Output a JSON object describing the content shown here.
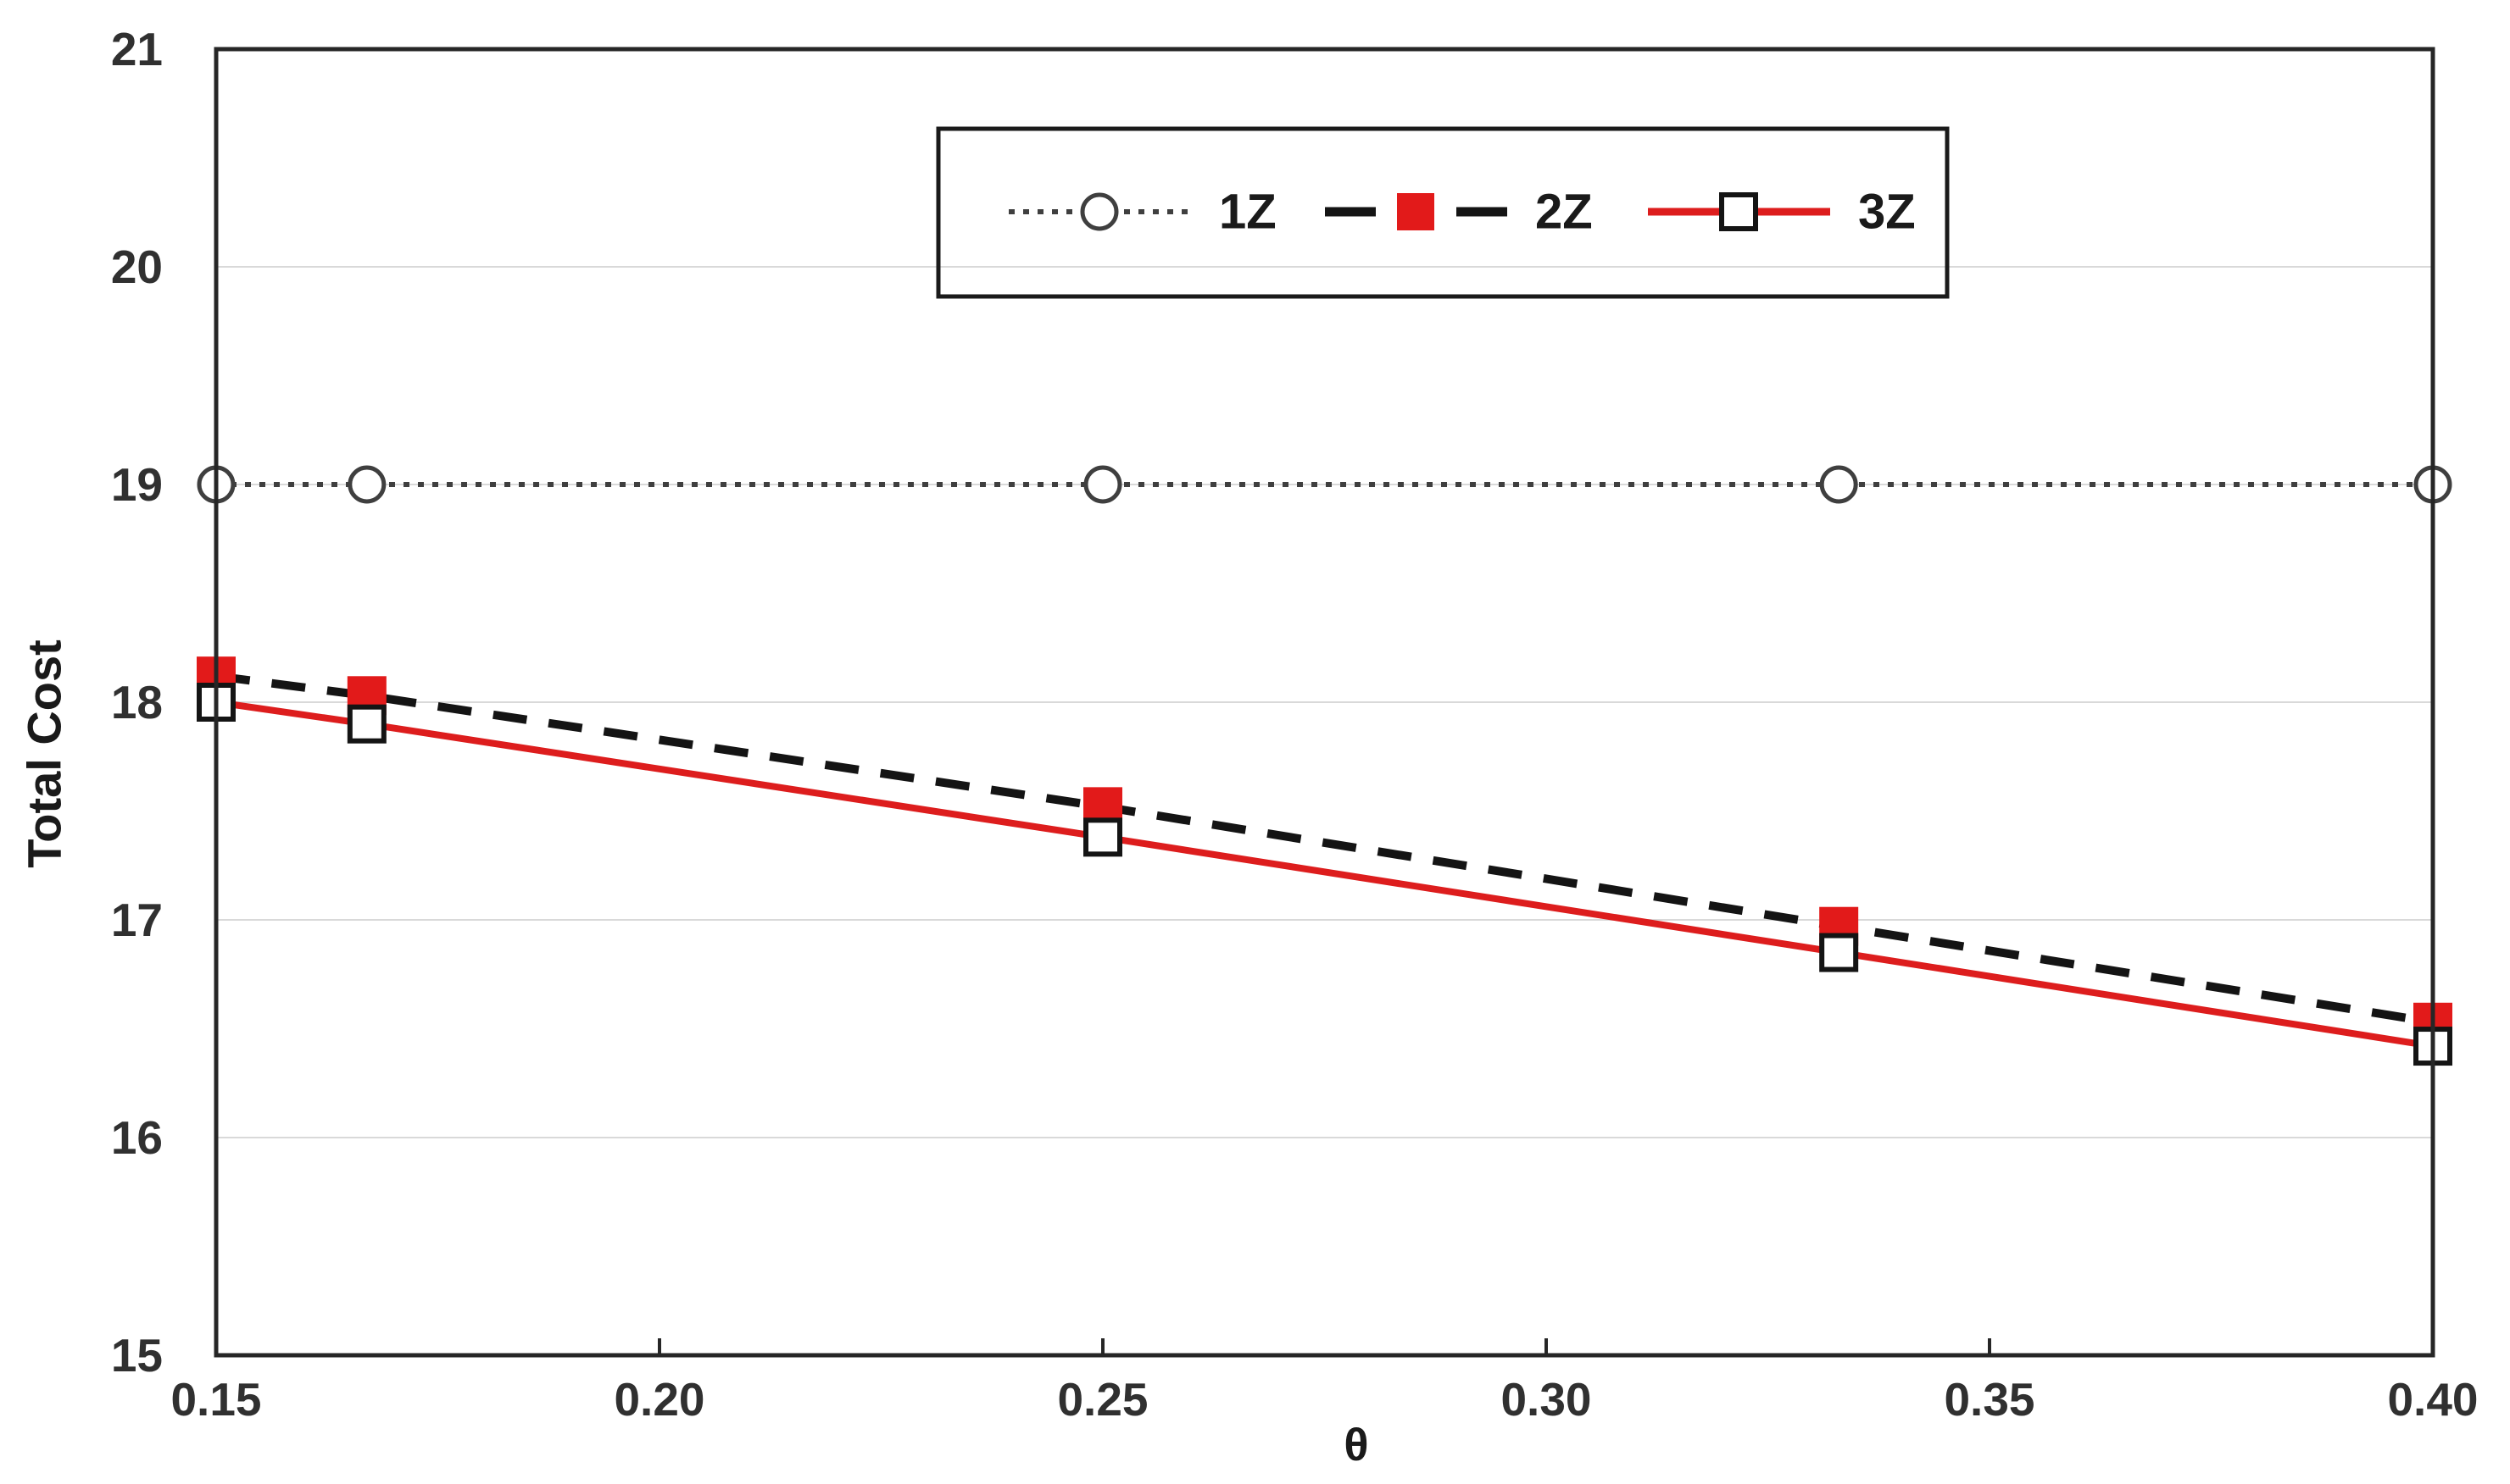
{
  "page": {
    "background": "#ffffff"
  },
  "chart_data": {
    "type": "line",
    "title": "",
    "xlabel": "θ",
    "ylabel": "Total Cost",
    "xlim": [
      0.15,
      0.4
    ],
    "ylim": [
      15,
      21
    ],
    "x_ticks": [
      "0.15",
      "0.20",
      "0.25",
      "0.30",
      "0.35",
      "0.40"
    ],
    "y_ticks": [
      "15",
      "16",
      "17",
      "18",
      "19",
      "20",
      "21"
    ],
    "grid": "horizontal-light",
    "legend_position": "top-center",
    "legend_entries": [
      "1Z",
      "2Z",
      "3Z"
    ],
    "x": [
      0.15,
      0.167,
      0.25,
      0.333,
      0.4
    ],
    "series": [
      {
        "name": "1Z",
        "values": [
          19,
          19,
          19,
          19,
          19
        ],
        "line_style": "dotted",
        "line_color": "#3f3f3f",
        "marker": "open-circle",
        "marker_stroke": "#3f3f3f",
        "marker_fill": "#ffffff"
      },
      {
        "name": "2Z",
        "values": [
          18.12,
          18.03,
          17.52,
          16.97,
          16.53
        ],
        "line_style": "dashed",
        "line_color": "#141414",
        "marker": "filled-square",
        "marker_fill": "#e21a1a"
      },
      {
        "name": "3Z",
        "values": [
          18.0,
          17.9,
          17.38,
          16.85,
          16.42
        ],
        "line_style": "solid",
        "line_color": "#dd1d1d",
        "marker": "open-square",
        "marker_stroke": "#141414",
        "marker_fill": "#ffffff"
      }
    ],
    "colors": {
      "frame": "#262626",
      "grid": "#d9d9d9",
      "tick_label": "#303030",
      "axis_title": "#1a1a1a",
      "legend_border": "#1a1a1a"
    }
  }
}
